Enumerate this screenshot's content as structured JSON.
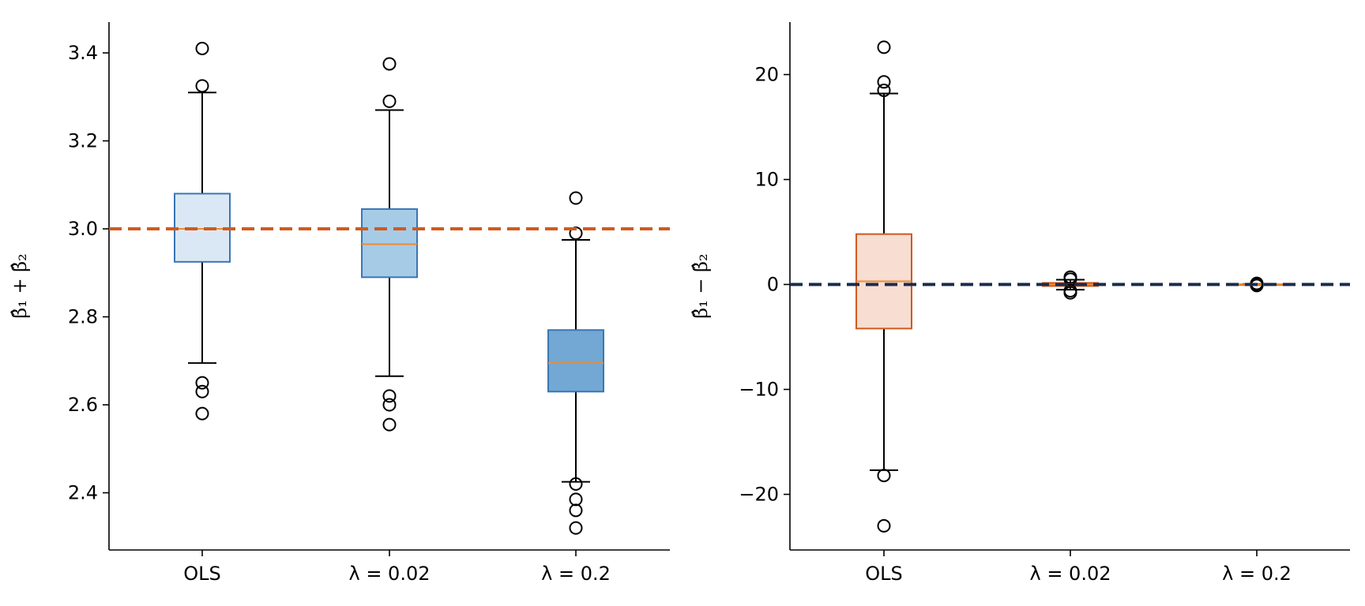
{
  "chart_data": [
    {
      "type": "boxplot",
      "categories": [
        "OLS",
        "λ = 0.02",
        "λ = 0.2"
      ],
      "ylabel": "β̂₁ + β̂₂",
      "ylim": [
        2.27,
        3.47
      ],
      "yticks": [
        2.4,
        2.6,
        2.8,
        3.0,
        3.2,
        3.4
      ],
      "ytick_labels": [
        "2.4",
        "2.6",
        "2.8",
        "3.0",
        "3.2",
        "3.4"
      ],
      "reference_line": {
        "y": 3.0,
        "color": "#d05a1f",
        "style": "dashed"
      },
      "median_color": "#f08a30",
      "boxes": [
        {
          "label": "OLS",
          "whisker_low": 2.695,
          "q1": 2.925,
          "median": 3.0,
          "q3": 3.08,
          "whisker_high": 3.31,
          "outliers": [
            3.41,
            3.325,
            2.65,
            2.63,
            2.58
          ],
          "fill": "#dae8f5",
          "edge": "#3a76b4"
        },
        {
          "label": "λ = 0.02",
          "whisker_low": 2.665,
          "q1": 2.89,
          "median": 2.965,
          "q3": 3.045,
          "whisker_high": 3.27,
          "outliers": [
            3.375,
            3.29,
            2.62,
            2.6,
            2.555
          ],
          "fill": "#a6cbe6",
          "edge": "#3a76b4"
        },
        {
          "label": "λ = 0.2",
          "whisker_low": 2.425,
          "q1": 2.63,
          "median": 2.695,
          "q3": 2.77,
          "whisker_high": 2.975,
          "outliers": [
            3.07,
            2.99,
            2.42,
            2.385,
            2.36,
            2.32
          ],
          "fill": "#72a8d3",
          "edge": "#3a76b4"
        }
      ]
    },
    {
      "type": "boxplot",
      "categories": [
        "OLS",
        "λ = 0.02",
        "λ = 0.2"
      ],
      "ylabel": "β̂₁ − β̂₂",
      "ylim": [
        -25.3,
        25.0
      ],
      "yticks": [
        -20,
        -10,
        0,
        10,
        20
      ],
      "ytick_labels": [
        "−20",
        "−10",
        "0",
        "10",
        "20"
      ],
      "reference_line": {
        "y": 0,
        "color": "#1a2b4c",
        "style": "dashed"
      },
      "median_color": "#f08a30",
      "boxes": [
        {
          "label": "OLS",
          "whisker_low": -17.7,
          "q1": -4.2,
          "median": 0.3,
          "q3": 4.8,
          "whisker_high": 18.2,
          "outliers": [
            22.6,
            19.3,
            18.5,
            -18.2,
            -23.0
          ],
          "fill": "#f7ddd2",
          "edge": "#d05a1f"
        },
        {
          "label": "λ = 0.02",
          "whisker_low": -0.5,
          "q1": -0.15,
          "median": 0.0,
          "q3": 0.15,
          "whisker_high": 0.45,
          "outliers": [
            0.7,
            0.5,
            -0.6,
            -0.8
          ],
          "fill": "#f7ddd2",
          "edge": "#d05a1f"
        },
        {
          "label": "λ = 0.2",
          "whisker_low": -0.05,
          "q1": -0.02,
          "median": 0.0,
          "q3": 0.02,
          "whisker_high": 0.05,
          "outliers": [
            0.1,
            0.0,
            -0.1
          ],
          "fill": "#f7ddd2",
          "edge": "#d05a1f"
        }
      ]
    }
  ]
}
